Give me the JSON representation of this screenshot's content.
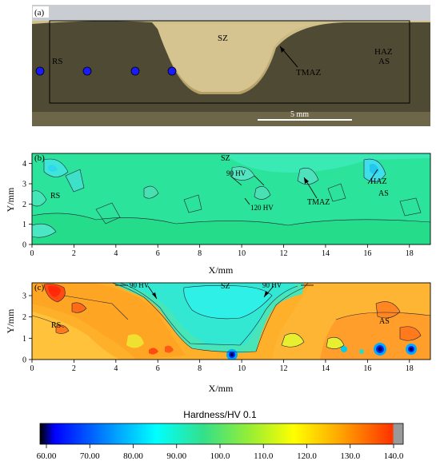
{
  "panel_a": {
    "label": "(a)",
    "regions": {
      "rs": "RS",
      "sz": "SZ",
      "tmaz": "TMAZ",
      "haz": "HAZ",
      "as": "AS"
    },
    "scale_bar": "5 mm",
    "colors": {
      "stir_zone": "#c8b47a",
      "base_metal": "#4f4a33",
      "marker": "#1a1aff"
    }
  },
  "panel_b": {
    "label": "(b)",
    "regions": {
      "sz": "SZ",
      "rs": "RS",
      "tmaz": "TMAZ",
      "haz": "HAZ",
      "as": "AS"
    },
    "annotations": {
      "hv90": "90 HV",
      "hv120": "120 HV"
    },
    "xlabel": "X/mm",
    "ylabel": "Y/mm"
  },
  "panel_c": {
    "label": "(c)",
    "regions": {
      "sz": "SZ",
      "rs": "RS",
      "as": "AS"
    },
    "annotations": {
      "hv90_left": "90 HV",
      "hv90_right": "90 HV"
    },
    "xlabel": "X/mm",
    "ylabel": "Y/mm"
  },
  "colorbar": {
    "title": "Hardness/HV 0.1",
    "ticks": [
      "60.00",
      "70.00",
      "80.00",
      "90.00",
      "100.0",
      "110.0",
      "120.0",
      "130.0",
      "140.0"
    ],
    "stops": [
      "#000000",
      "#0000ff",
      "#00aaff",
      "#00ffff",
      "#33e08a",
      "#99ee33",
      "#ffff00",
      "#ffaa00",
      "#ff3300",
      "#999999"
    ]
  },
  "chart_data": [
    {
      "type": "heatmap",
      "panel": "(b)",
      "xlabel": "X/mm",
      "ylabel": "Y/mm",
      "xlim": [
        0,
        19
      ],
      "ylim": [
        0,
        4.5
      ],
      "xticks": [
        0,
        2,
        4,
        6,
        8,
        10,
        12,
        14,
        16,
        18
      ],
      "yticks": [
        0,
        1,
        2,
        3,
        4
      ],
      "field": "hardness (HV 0.1), approx. 85–95 HV throughout"
    },
    {
      "type": "heatmap",
      "panel": "(c)",
      "xlabel": "X/mm",
      "ylabel": "Y/mm",
      "xlim": [
        0,
        19
      ],
      "ylim": [
        0,
        3.6
      ],
      "xticks": [
        0,
        2,
        4,
        6,
        8,
        10,
        12,
        14,
        16,
        18
      ],
      "yticks": [
        0,
        1,
        2,
        3
      ],
      "field": "hardness (HV 0.1), approx. 90 HV in SZ, 115–135 HV in RS/AS"
    }
  ]
}
